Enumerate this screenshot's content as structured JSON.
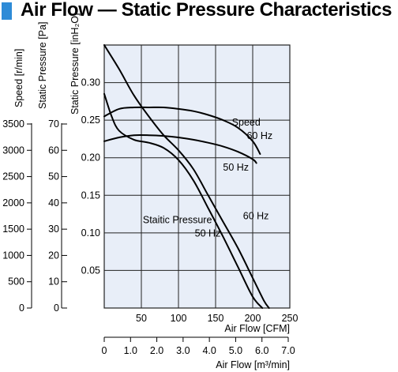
{
  "title": "Air Flow — Static Pressure Characteristics",
  "colors": {
    "title_marker": "#2e8bd7",
    "plot_background": "#e8eef8",
    "grid": "#222222",
    "curves": "#000000"
  },
  "chart_data": {
    "type": "line",
    "title": "Air Flow — Static Pressure Characteristics",
    "grid": true,
    "x_axis": {
      "label": "Air Flow [CFM]",
      "range": [
        0,
        250
      ],
      "ticks": [
        50,
        100,
        150,
        200,
        250
      ],
      "tick_labels": [
        "50",
        "100",
        "150",
        "200",
        "250"
      ]
    },
    "x_axis_secondary": {
      "label": "Air Flow [m³/min]",
      "range": [
        0,
        7.0
      ],
      "tick_labels": [
        "0",
        "1.0",
        "2.0",
        "3.0",
        "4.0",
        "5.0",
        "6.0",
        "7.0"
      ]
    },
    "y_axis": {
      "label": "Static Pressure [inH₂O]",
      "range": [
        0,
        0.35
      ],
      "ticks": [
        0.05,
        0.1,
        0.15,
        0.2,
        0.25,
        0.3
      ],
      "tick_labels": [
        "0.05",
        "0.10",
        "0.15",
        "0.20",
        "0.25",
        "0.30"
      ]
    },
    "y_axis_pascal": {
      "label": "Static Pressure [Pa]",
      "tick_labels": [
        "0",
        "10",
        "20",
        "30",
        "40",
        "50",
        "60",
        "70"
      ]
    },
    "y_axis_speed": {
      "label": "Speed [r/min]",
      "tick_labels": [
        "0",
        "500",
        "1000",
        "1500",
        "2000",
        "2500",
        "3000",
        "3500"
      ]
    },
    "series": [
      {
        "key": "sp60",
        "kind": "static-pressure",
        "x": [
          0,
          20,
          40,
          60,
          80,
          100,
          120,
          140,
          160,
          180,
          200,
          215,
          222
        ],
        "y": [
          0.35,
          0.318,
          0.283,
          0.255,
          0.23,
          0.21,
          0.185,
          0.15,
          0.115,
          0.08,
          0.04,
          0.01,
          0.0
        ]
      },
      {
        "key": "sp50",
        "kind": "static-pressure",
        "x": [
          0,
          10,
          20,
          40,
          60,
          80,
          100,
          120,
          140,
          160,
          180,
          200,
          213
        ],
        "y": [
          0.285,
          0.255,
          0.236,
          0.224,
          0.22,
          0.213,
          0.197,
          0.17,
          0.133,
          0.095,
          0.055,
          0.015,
          0.0
        ]
      },
      {
        "key": "spd60",
        "kind": "speed",
        "x": [
          0,
          20,
          40,
          60,
          80,
          100,
          120,
          140,
          160,
          180,
          200,
          210
        ],
        "y": [
          0.255,
          0.265,
          0.267,
          0.267,
          0.267,
          0.265,
          0.262,
          0.257,
          0.25,
          0.24,
          0.222,
          0.205
        ]
      },
      {
        "key": "spd50",
        "kind": "speed",
        "x": [
          0,
          20,
          40,
          60,
          80,
          100,
          120,
          140,
          160,
          180,
          200,
          205
        ],
        "y": [
          0.222,
          0.227,
          0.23,
          0.23,
          0.229,
          0.227,
          0.224,
          0.22,
          0.215,
          0.208,
          0.198,
          0.193
        ]
      }
    ],
    "annotations": [
      {
        "text": "Speed",
        "x": 172,
        "y": 0.243
      },
      {
        "text": "60 Hz",
        "x": 192,
        "y": 0.225
      },
      {
        "text": "50 Hz",
        "x": 160,
        "y": 0.183
      },
      {
        "text": "Staitic Pressure",
        "x": 52,
        "y": 0.113
      },
      {
        "text": "60 Hz",
        "x": 187,
        "y": 0.118
      },
      {
        "text": "50 Hz",
        "x": 122,
        "y": 0.095
      }
    ]
  }
}
